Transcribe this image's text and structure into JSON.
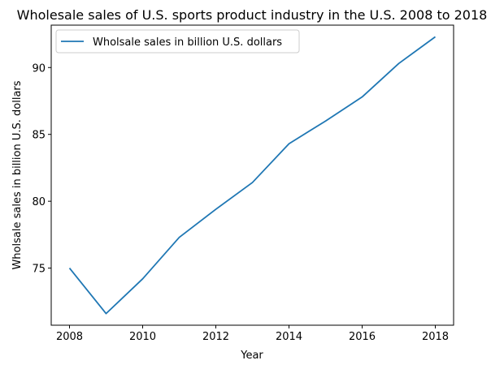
{
  "chart_data": {
    "type": "line",
    "title": "Wholesale sales of U.S. sports product industry in the U.S. 2008 to 2018",
    "xlabel": "Year",
    "ylabel": "Wholsale sales in billion U.S. dollars",
    "x": [
      2008,
      2009,
      2010,
      2011,
      2012,
      2013,
      2014,
      2015,
      2016,
      2017,
      2018
    ],
    "series": [
      {
        "name": "Wholsale sales in billion U.S. dollars",
        "values": [
          75.0,
          71.6,
          74.2,
          77.3,
          79.4,
          81.4,
          84.3,
          86.0,
          87.8,
          90.3,
          92.3
        ],
        "color": "#1f77b4"
      }
    ],
    "xlim": [
      2007.5,
      2018.5
    ],
    "ylim": [
      70.73,
      93.17
    ],
    "xticks": [
      2008,
      2010,
      2012,
      2014,
      2016,
      2018
    ],
    "yticks": [
      75,
      80,
      85,
      90
    ],
    "grid": false,
    "legend_position": "top-left"
  }
}
